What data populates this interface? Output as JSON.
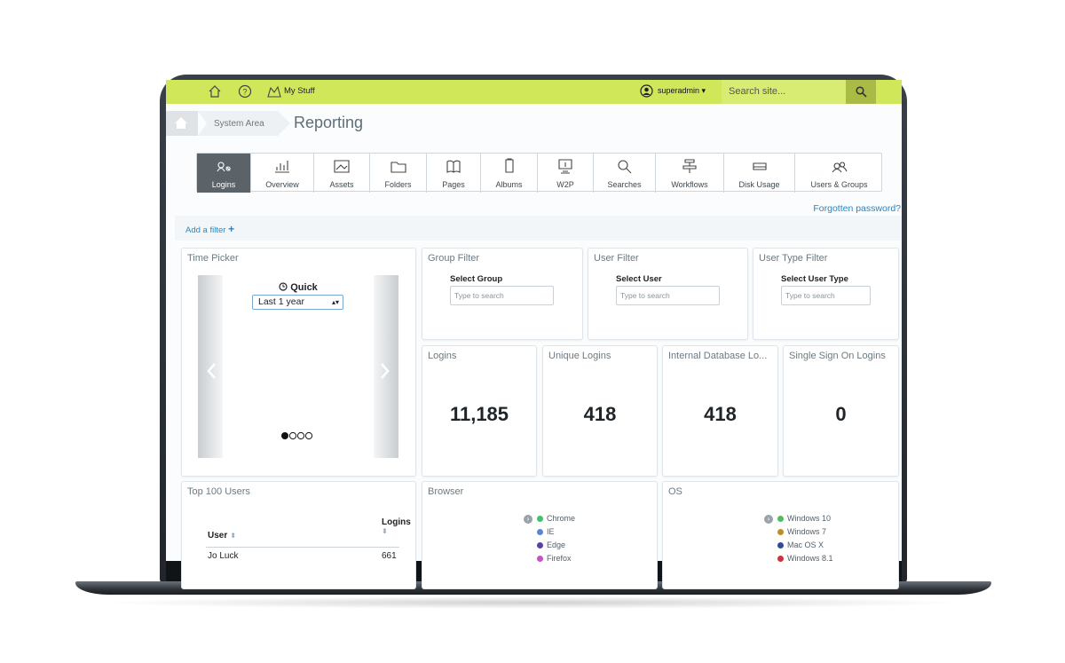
{
  "topbar": {
    "my_stuff": "My Stuff",
    "user": "superadmin",
    "search_placeholder": "Search site..."
  },
  "breadcrumb": {
    "section": "System Area",
    "page": "Reporting"
  },
  "tabs": [
    "Logins",
    "Overview",
    "Assets",
    "Folders",
    "Pages",
    "Albums",
    "W2P",
    "Searches",
    "Workflows",
    "Disk Usage",
    "Users & Groups"
  ],
  "forgotten_password": "Forgotten password?",
  "add_filter": "Add a filter",
  "time_picker": {
    "title": "Time Picker",
    "quick": "Quick",
    "selected": "Last 1 year"
  },
  "filters": [
    {
      "title": "Group Filter",
      "label": "Select Group",
      "placeholder": "Type to search"
    },
    {
      "title": "User Filter",
      "label": "Select User",
      "placeholder": "Type to search"
    },
    {
      "title": "User Type Filter",
      "label": "Select User Type",
      "placeholder": "Type to search"
    }
  ],
  "stats": [
    {
      "title": "Logins",
      "value": "11,185"
    },
    {
      "title": "Unique Logins",
      "value": "418"
    },
    {
      "title": "Internal Database Lo...",
      "value": "418"
    },
    {
      "title": "Single Sign On Logins",
      "value": "0"
    }
  ],
  "top_users": {
    "title": "Top 100 Users",
    "columns": [
      "User",
      "Logins"
    ],
    "rows": [
      [
        "Jo Luck",
        "661"
      ]
    ]
  },
  "browser": {
    "title": "Browser",
    "legend": [
      {
        "name": "Chrome",
        "color": "#3cc36b"
      },
      {
        "name": "IE",
        "color": "#5b86d6"
      },
      {
        "name": "Edge",
        "color": "#5b3fa8"
      },
      {
        "name": "Firefox",
        "color": "#c84fc9"
      }
    ]
  },
  "os": {
    "title": "OS",
    "legend": [
      {
        "name": "Windows 10",
        "color": "#4cbf5b"
      },
      {
        "name": "Windows 7",
        "color": "#b8902f"
      },
      {
        "name": "Mac OS X",
        "color": "#2c4b9a"
      },
      {
        "name": "Windows 8.1",
        "color": "#c9343f"
      }
    ]
  }
}
